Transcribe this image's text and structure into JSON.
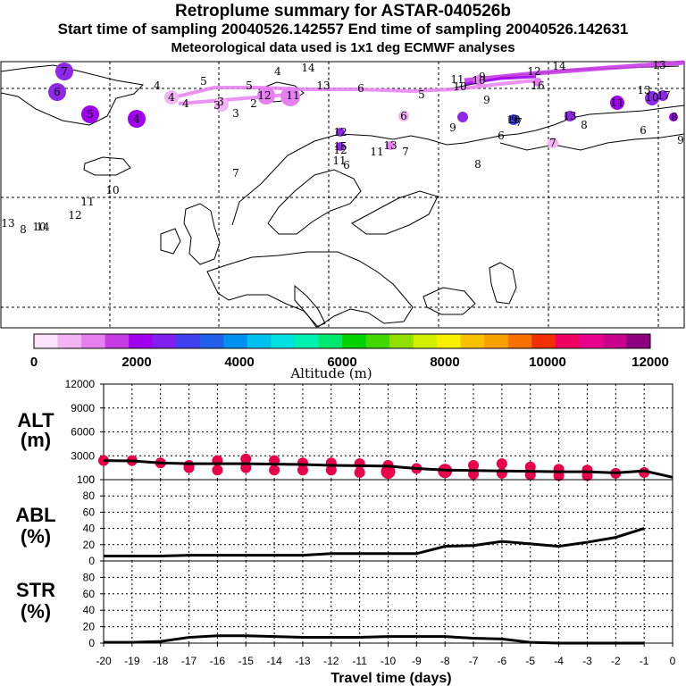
{
  "header": {
    "title": "Retroplume summary for ASTAR-040526b",
    "sampling_line": "Start time of sampling 20040526.142557     End time of sampling 20040526.142631",
    "met_line": "Meteorological data used is 1x1 deg ECMWF analyses"
  },
  "colorbar": {
    "colors": [
      "#fbe4fb",
      "#f2b4f2",
      "#e680f0",
      "#c83ce6",
      "#a000f0",
      "#8020f0",
      "#4040f0",
      "#2060e8",
      "#0090f0",
      "#00c0f0",
      "#00e0e0",
      "#00f0b0",
      "#00e870",
      "#00d000",
      "#40d800",
      "#90e000",
      "#d0f000",
      "#f8f000",
      "#f8c000",
      "#f8a000",
      "#f87000",
      "#f03000",
      "#f00060",
      "#e8008c",
      "#c8008c",
      "#8c0080"
    ],
    "tick_labels": [
      "0",
      "2000",
      "4000",
      "6000",
      "8000",
      "10000",
      "12000"
    ],
    "axis_label": "Altitude (m)"
  },
  "map_labels": [
    {
      "t": "7",
      "c": "#8c28e6"
    },
    {
      "t": "6",
      "c": "#8c28e6"
    },
    {
      "t": "5",
      "c": "#a000f0"
    },
    {
      "t": "4",
      "c": "#a000f0"
    },
    {
      "t": "4",
      "c": "#f2b4f2"
    },
    {
      "t": "4",
      "c": "#ffffff"
    },
    {
      "t": "5",
      "c": "#ffffff"
    },
    {
      "t": "4",
      "c": "#ffffff"
    },
    {
      "t": "5",
      "c": "#ffffff"
    },
    {
      "t": "3",
      "c": "#f2b4f2"
    },
    {
      "t": "4",
      "c": "#ffffff"
    },
    {
      "t": "3",
      "c": "#f2b4f2"
    },
    {
      "t": "12",
      "c": "#e680f0"
    },
    {
      "t": "3",
      "c": "#e680f0"
    },
    {
      "t": "2",
      "c": "#f2b4f2"
    },
    {
      "t": "11",
      "c": "#e680f0"
    },
    {
      "t": "6",
      "c": "#ffffff"
    },
    {
      "t": "5",
      "c": "#ffffff"
    },
    {
      "t": "6",
      "c": "#f2b4f2"
    },
    {
      "t": "14",
      "c": "#8c28e6"
    },
    {
      "t": "13",
      "c": "#8c28e6"
    },
    {
      "t": "15",
      "c": "#a000f0"
    },
    {
      "t": "12",
      "c": "#e680f0"
    },
    {
      "t": "11",
      "c": "#8c28e6"
    },
    {
      "t": "7",
      "c": "#e680f0"
    },
    {
      "t": "8",
      "c": "#e680f0"
    },
    {
      "t": "9",
      "c": "#a000f0"
    },
    {
      "t": "10",
      "c": "#e680f0"
    },
    {
      "t": "9",
      "c": "#ffffff"
    },
    {
      "t": "10",
      "c": "#ffffff"
    },
    {
      "t": "11",
      "c": "#f2b4f2"
    },
    {
      "t": "12",
      "c": "#f2b4f2"
    },
    {
      "t": "14",
      "c": "#e680f0"
    },
    {
      "t": "13",
      "c": "#f2b4f2"
    },
    {
      "t": "9",
      "c": "#a000f0"
    },
    {
      "t": "6",
      "c": "#ffffff"
    },
    {
      "t": "7",
      "c": "#ffffff"
    },
    {
      "t": "10",
      "c": "#4040f0"
    },
    {
      "t": "13",
      "c": "#8c28e6"
    },
    {
      "t": "8",
      "c": "#ffffff"
    },
    {
      "t": "7",
      "c": "#f2b4f2"
    },
    {
      "t": "6",
      "c": "#ffffff"
    },
    {
      "t": "11",
      "c": "#a000f0"
    },
    {
      "t": "13",
      "c": "#c83ce6"
    },
    {
      "t": "10",
      "c": "#8c28e6"
    },
    {
      "t": "17",
      "c": "#8c28e6"
    },
    {
      "t": "8",
      "c": "#a000f0"
    },
    {
      "t": "9",
      "c": "#ffffff"
    },
    {
      "t": "6",
      "c": "#f2b4f2"
    },
    {
      "t": "7",
      "c": "#ffffff"
    },
    {
      "t": "10",
      "c": "#e680f0"
    },
    {
      "t": "11",
      "c": "#e680f0"
    },
    {
      "t": "12",
      "c": "#e680f0"
    },
    {
      "t": "10",
      "c": "#ffffff"
    },
    {
      "t": "11",
      "c": "#ffffff"
    },
    {
      "t": "12",
      "c": "#f2b4f2"
    },
    {
      "t": "13",
      "c": "#f2b4f2"
    },
    {
      "t": "14",
      "c": "#f2b4f2"
    },
    {
      "t": "8",
      "c": "#f2b4f2"
    },
    {
      "t": "16",
      "c": "#e680f0"
    },
    {
      "t": "13",
      "c": "#ffffff"
    },
    {
      "t": "9",
      "c": "#ffffff"
    }
  ],
  "panels": {
    "alt": {
      "label_1": "ALT",
      "label_2": "(m)",
      "y_ticks": [
        "12000",
        "9000",
        "6000",
        "3000",
        "0"
      ]
    },
    "abl": {
      "label_1": "ABL",
      "label_2": "(%)",
      "y_ticks": [
        "100",
        "80",
        "60",
        "40",
        "20",
        "0"
      ]
    },
    "str": {
      "label_1": "STR",
      "label_2": "(%)",
      "y_ticks": [
        "80",
        "60",
        "40",
        "20",
        "0"
      ]
    }
  },
  "chart_data": [
    {
      "type": "line",
      "title": "ALT (m)",
      "xlabel": "Travel time (days)",
      "ylabel": "ALT (m)",
      "xlim": [
        -20,
        0
      ],
      "ylim": [
        0,
        12000
      ],
      "x_ticks": [
        "-20",
        "-19",
        "-18",
        "-17",
        "-16",
        "-15",
        "-14",
        "-13",
        "-12",
        "-11",
        "-10",
        "-9",
        "-8",
        "-7",
        "-6",
        "-5",
        "-4",
        "-3",
        "-2",
        "-1",
        "0"
      ],
      "x": [
        -20,
        -19,
        -18,
        -17,
        -16,
        -15,
        -14,
        -13,
        -12,
        -11,
        -10,
        -9,
        -8,
        -7,
        -6,
        -5,
        -4,
        -3,
        -2,
        -1,
        0
      ],
      "series": [
        {
          "name": "mean altitude",
          "values": [
            2400,
            2350,
            2100,
            2000,
            2000,
            2000,
            1950,
            1900,
            1800,
            1750,
            1700,
            1400,
            1200,
            1150,
            1100,
            1050,
            1000,
            1000,
            850,
            1100,
            300
          ]
        }
      ],
      "points": [
        {
          "x": -20,
          "y": 2400
        },
        {
          "x": -19,
          "y": 2400
        },
        {
          "x": -18,
          "y": 2100
        },
        {
          "x": -17,
          "y": 1800
        },
        {
          "x": -17,
          "y": 1500
        },
        {
          "x": -16,
          "y": 2400
        },
        {
          "x": -16,
          "y": 1200
        },
        {
          "x": -15,
          "y": 2600
        },
        {
          "x": -15,
          "y": 1500
        },
        {
          "x": -14,
          "y": 2400
        },
        {
          "x": -14,
          "y": 1200
        },
        {
          "x": -13,
          "y": 2100
        },
        {
          "x": -13,
          "y": 1200
        },
        {
          "x": -12,
          "y": 2100
        },
        {
          "x": -12,
          "y": 1200
        },
        {
          "x": -11,
          "y": 2000
        },
        {
          "x": -11,
          "y": 900
        },
        {
          "x": -10,
          "y": 1800
        },
        {
          "x": -10,
          "y": 1000
        },
        {
          "x": -9,
          "y": 1400
        },
        {
          "x": -8,
          "y": 1100
        },
        {
          "x": -7,
          "y": 1800
        },
        {
          "x": -7,
          "y": 700
        },
        {
          "x": -6,
          "y": 2000
        },
        {
          "x": -6,
          "y": 800
        },
        {
          "x": -5,
          "y": 1600
        },
        {
          "x": -5,
          "y": 600
        },
        {
          "x": -4,
          "y": 1300
        },
        {
          "x": -4,
          "y": 500
        },
        {
          "x": -3,
          "y": 1200
        },
        {
          "x": -3,
          "y": 500
        },
        {
          "x": -2,
          "y": 800
        },
        {
          "x": -1,
          "y": 900
        }
      ]
    },
    {
      "type": "line",
      "title": "ABL (%)",
      "ylabel": "ABL (%)",
      "xlim": [
        -20,
        0
      ],
      "ylim": [
        0,
        100
      ],
      "x": [
        -20,
        -19,
        -18,
        -17,
        -16,
        -15,
        -14,
        -13,
        -12,
        -11,
        -10,
        -9,
        -8,
        -7,
        -6,
        -5,
        -4,
        -3,
        -2,
        -1
      ],
      "series": [
        {
          "name": "ABL fraction",
          "values": [
            6,
            6,
            6,
            7,
            7,
            7,
            7,
            7,
            9,
            9,
            9,
            9,
            18,
            19,
            24,
            21,
            18,
            23,
            29,
            40
          ]
        }
      ]
    },
    {
      "type": "line",
      "title": "STR (%)",
      "ylabel": "STR (%)",
      "xlim": [
        -20,
        0
      ],
      "ylim": [
        0,
        100
      ],
      "x": [
        -20,
        -19,
        -18,
        -17,
        -16,
        -15,
        -14,
        -13,
        -12,
        -11,
        -10,
        -9,
        -8,
        -7,
        -6,
        -5,
        -4,
        -3,
        -2,
        -1
      ],
      "series": [
        {
          "name": "stratospheric fraction",
          "values": [
            1,
            1,
            2,
            7,
            9,
            9,
            8,
            7,
            7,
            7,
            8,
            8,
            8,
            6,
            5,
            1,
            0,
            0,
            0,
            0
          ]
        }
      ]
    }
  ]
}
